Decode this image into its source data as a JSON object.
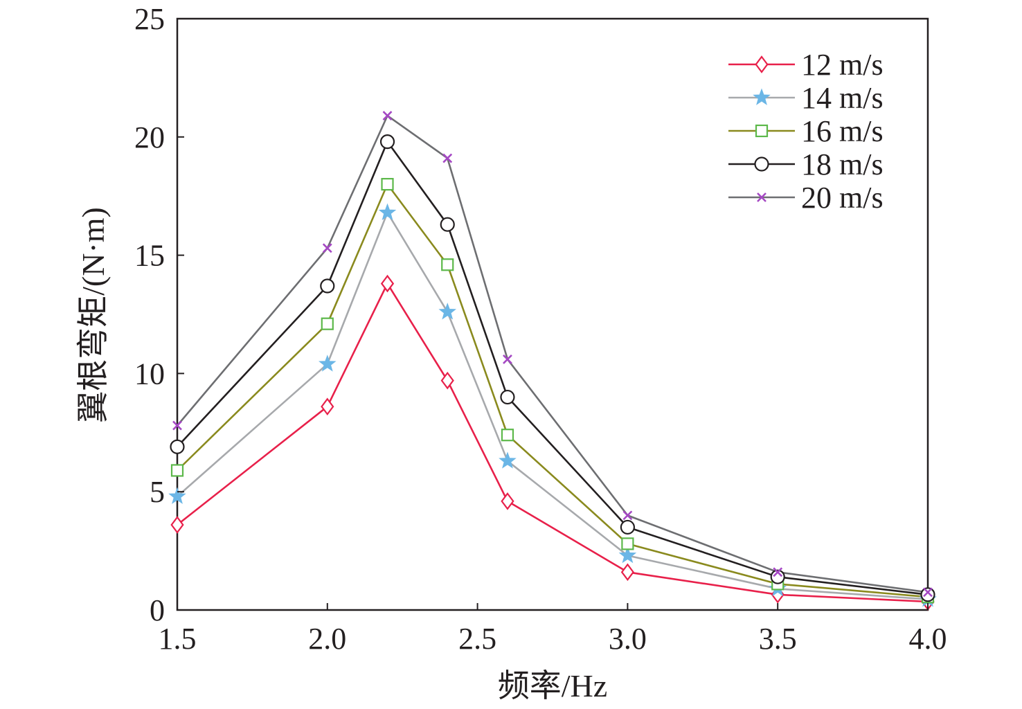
{
  "chart_data": {
    "type": "line",
    "xlabel": "频率/Hz",
    "ylabel": "翼根弯矩/(N·m)",
    "x": [
      1.5,
      2.0,
      2.2,
      2.4,
      2.6,
      3.0,
      3.5,
      4.0
    ],
    "x_tick_positions": [
      1.5,
      2.0,
      2.5,
      3.0,
      3.5,
      4.0
    ],
    "x_ticks": [
      "1.5",
      "2.0",
      "2.5",
      "3.0",
      "3.5",
      "4.0"
    ],
    "y_tick_positions": [
      0,
      5,
      10,
      15,
      20,
      25
    ],
    "y_ticks": [
      "0",
      "5",
      "10",
      "15",
      "20",
      "25"
    ],
    "xlim": [
      1.5,
      4.0
    ],
    "ylim": [
      0,
      25
    ],
    "grid": false,
    "legend_position": "top-right",
    "series": [
      {
        "name": "12 m/s",
        "marker": "diamond",
        "line_color": "#e8204a",
        "marker_color": "#e8204a",
        "values": [
          3.6,
          8.6,
          13.8,
          9.7,
          4.6,
          1.6,
          0.65,
          0.35
        ]
      },
      {
        "name": "14 m/s",
        "marker": "star",
        "line_color": "#a7a9ac",
        "marker_color": "#6bb6e6",
        "values": [
          4.8,
          10.4,
          16.8,
          12.6,
          6.3,
          2.3,
          0.9,
          0.45
        ]
      },
      {
        "name": "16 m/s",
        "marker": "square",
        "line_color": "#8a8a1e",
        "marker_color": "#5cb84a",
        "values": [
          5.9,
          12.1,
          18.0,
          14.6,
          7.4,
          2.8,
          1.1,
          0.55
        ]
      },
      {
        "name": "18 m/s",
        "marker": "circle",
        "line_color": "#231f20",
        "marker_color": "#231f20",
        "values": [
          6.9,
          13.7,
          19.8,
          16.3,
          9.0,
          3.5,
          1.4,
          0.65
        ]
      },
      {
        "name": "20 m/s",
        "marker": "x",
        "line_color": "#6d6e71",
        "marker_color": "#a548c4",
        "values": [
          7.8,
          15.3,
          20.9,
          19.1,
          10.6,
          4.0,
          1.6,
          0.75
        ]
      }
    ]
  }
}
